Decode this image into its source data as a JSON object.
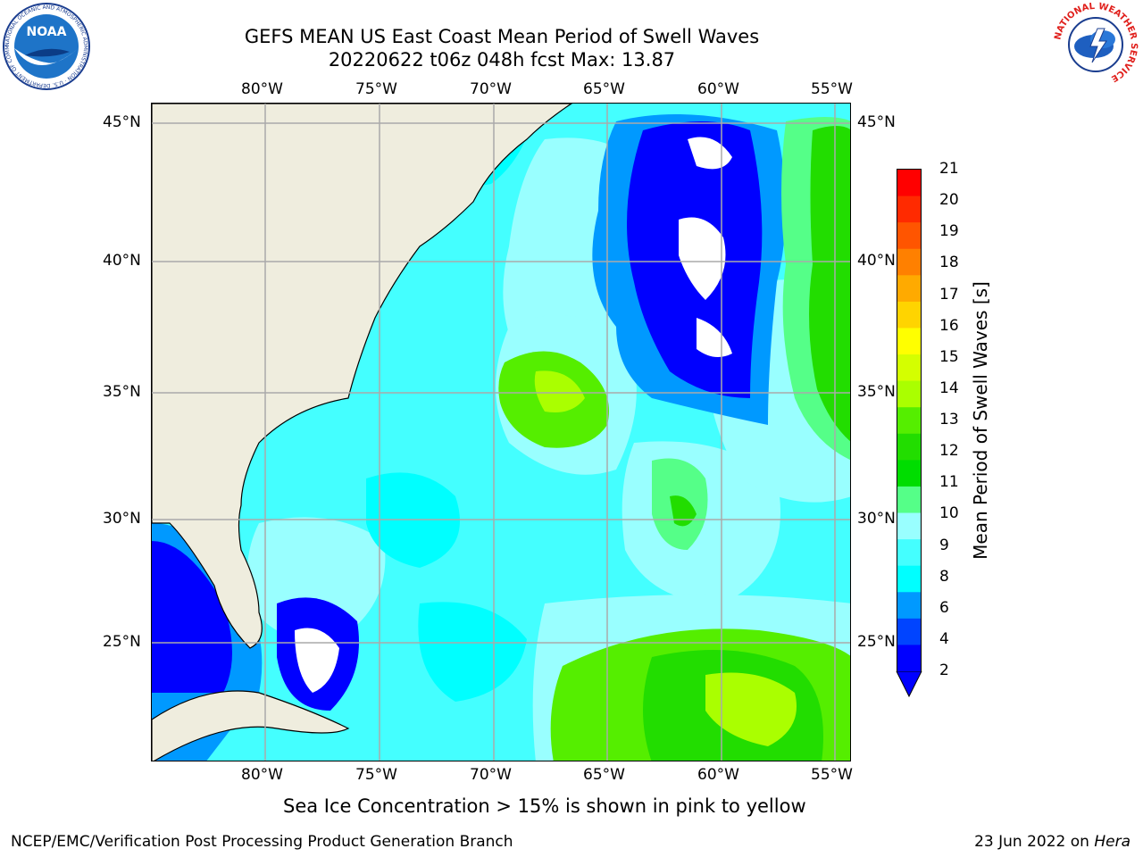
{
  "title": {
    "line1": "GEFS MEAN US East Coast Mean Period of Swell Waves",
    "line2": "20220622 t06z 048h fcst   Max: 13.87"
  },
  "axes": {
    "lon_labels": [
      "80°W",
      "75°W",
      "70°W",
      "65°W",
      "60°W",
      "55°W"
    ],
    "lat_labels": [
      "45°N",
      "40°N",
      "35°N",
      "30°N",
      "25°N"
    ]
  },
  "colorbar": {
    "label": "Mean Period of Swell Waves [s]",
    "ticks": [
      "21",
      "20",
      "19",
      "18",
      "17",
      "16",
      "15",
      "14",
      "13",
      "12",
      "11",
      "10",
      "9",
      "8",
      "6",
      "4",
      "2"
    ],
    "colors": [
      "#ff0000",
      "#ff2a00",
      "#ff5500",
      "#ff8000",
      "#ffaa00",
      "#ffd400",
      "#ffff00",
      "#d4ff00",
      "#aaff00",
      "#55ee00",
      "#22dd00",
      "#00dd00",
      "#55ff88",
      "#99ffff",
      "#44ffff",
      "#00ffff",
      "#0099ff",
      "#0044ff",
      "#0000ff"
    ]
  },
  "note": "Sea Ice Concentration > 15% is shown in pink to yellow",
  "footer": {
    "left": "NCEP/EMC/Verification Post Processing Product Generation Branch",
    "right_date": "23 Jun 2022 on ",
    "right_host": "Hera"
  },
  "logos": {
    "noaa_text": "NOAA",
    "noaa_ring": "NATIONAL OCEANIC AND ATMOSPHERIC ADMINISTRATION · U.S. DEPARTMENT OF COMMERCE",
    "nws_ring": "NATIONAL WEATHER SERVICE"
  }
}
